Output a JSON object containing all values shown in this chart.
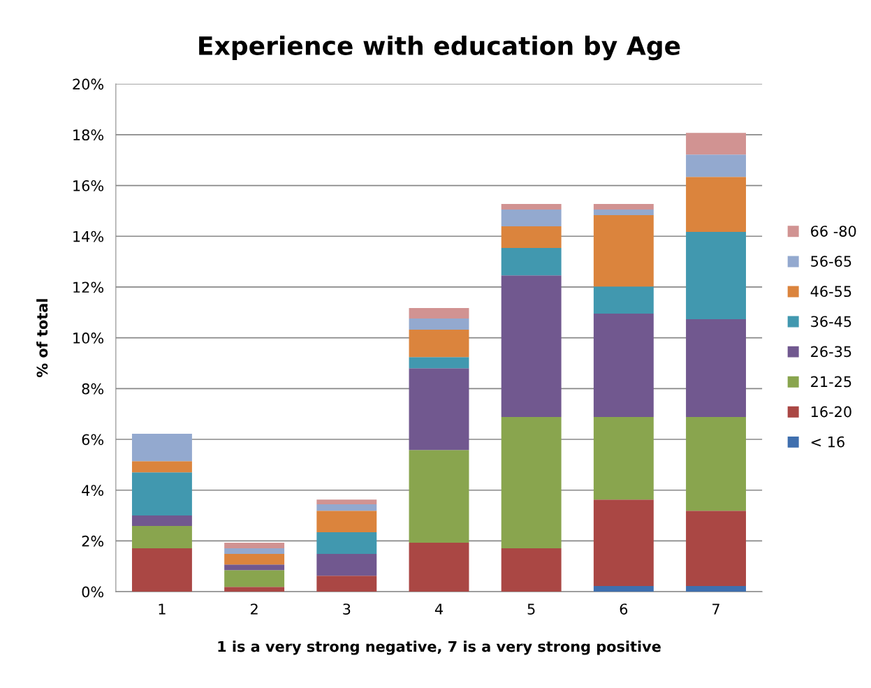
{
  "chart_data": {
    "type": "bar",
    "stacked": true,
    "title": "Experience with education by Age",
    "xlabel": "1 is a very strong negative, 7 is a very strong positive",
    "ylabel": "% of total",
    "categories": [
      "1",
      "2",
      "3",
      "4",
      "5",
      "6",
      "7"
    ],
    "series": [
      {
        "name": "< 16",
        "color": "#3f6fae",
        "values": [
          0,
          0,
          0,
          0,
          0,
          0.22,
          0.22
        ]
      },
      {
        "name": "16-20",
        "color": "#aa4744",
        "values": [
          1.71,
          0.19,
          0.63,
          1.93,
          1.71,
          3.41,
          2.97
        ]
      },
      {
        "name": "21-25",
        "color": "#89a54e",
        "values": [
          0.88,
          0.66,
          0,
          3.65,
          5.17,
          3.25,
          3.69
        ]
      },
      {
        "name": "26-35",
        "color": "#71588f",
        "values": [
          0.41,
          0.22,
          0.86,
          3.22,
          5.58,
          4.07,
          3.85
        ]
      },
      {
        "name": "36-45",
        "color": "#4198af",
        "values": [
          1.7,
          0,
          0.85,
          0.44,
          1.08,
          1.07,
          3.44
        ]
      },
      {
        "name": "46-55",
        "color": "#db843d",
        "values": [
          0.44,
          0.42,
          0.85,
          1.08,
          0.85,
          2.81,
          2.17
        ]
      },
      {
        "name": "56-65",
        "color": "#93a9cf",
        "values": [
          1.08,
          0.22,
          0.25,
          0.44,
          0.66,
          0.22,
          0.88
        ]
      },
      {
        "name": "66 -80",
        "color": "#d19392",
        "values": [
          0,
          0.22,
          0.19,
          0.41,
          0.22,
          0.22,
          0.85
        ]
      }
    ],
    "ylim": [
      0,
      20
    ],
    "yticks": [
      {
        "value": 0,
        "label": "0%"
      },
      {
        "value": 2,
        "label": "2%"
      },
      {
        "value": 4,
        "label": "4%"
      },
      {
        "value": 6,
        "label": "6%"
      },
      {
        "value": 8,
        "label": "8%"
      },
      {
        "value": 10,
        "label": "10%"
      },
      {
        "value": 12,
        "label": "12%"
      },
      {
        "value": 14,
        "label": "14%"
      },
      {
        "value": 16,
        "label": "16%"
      },
      {
        "value": 18,
        "label": "18%"
      },
      {
        "value": 20,
        "label": "20%"
      }
    ],
    "grid": "y",
    "legend": "right"
  }
}
